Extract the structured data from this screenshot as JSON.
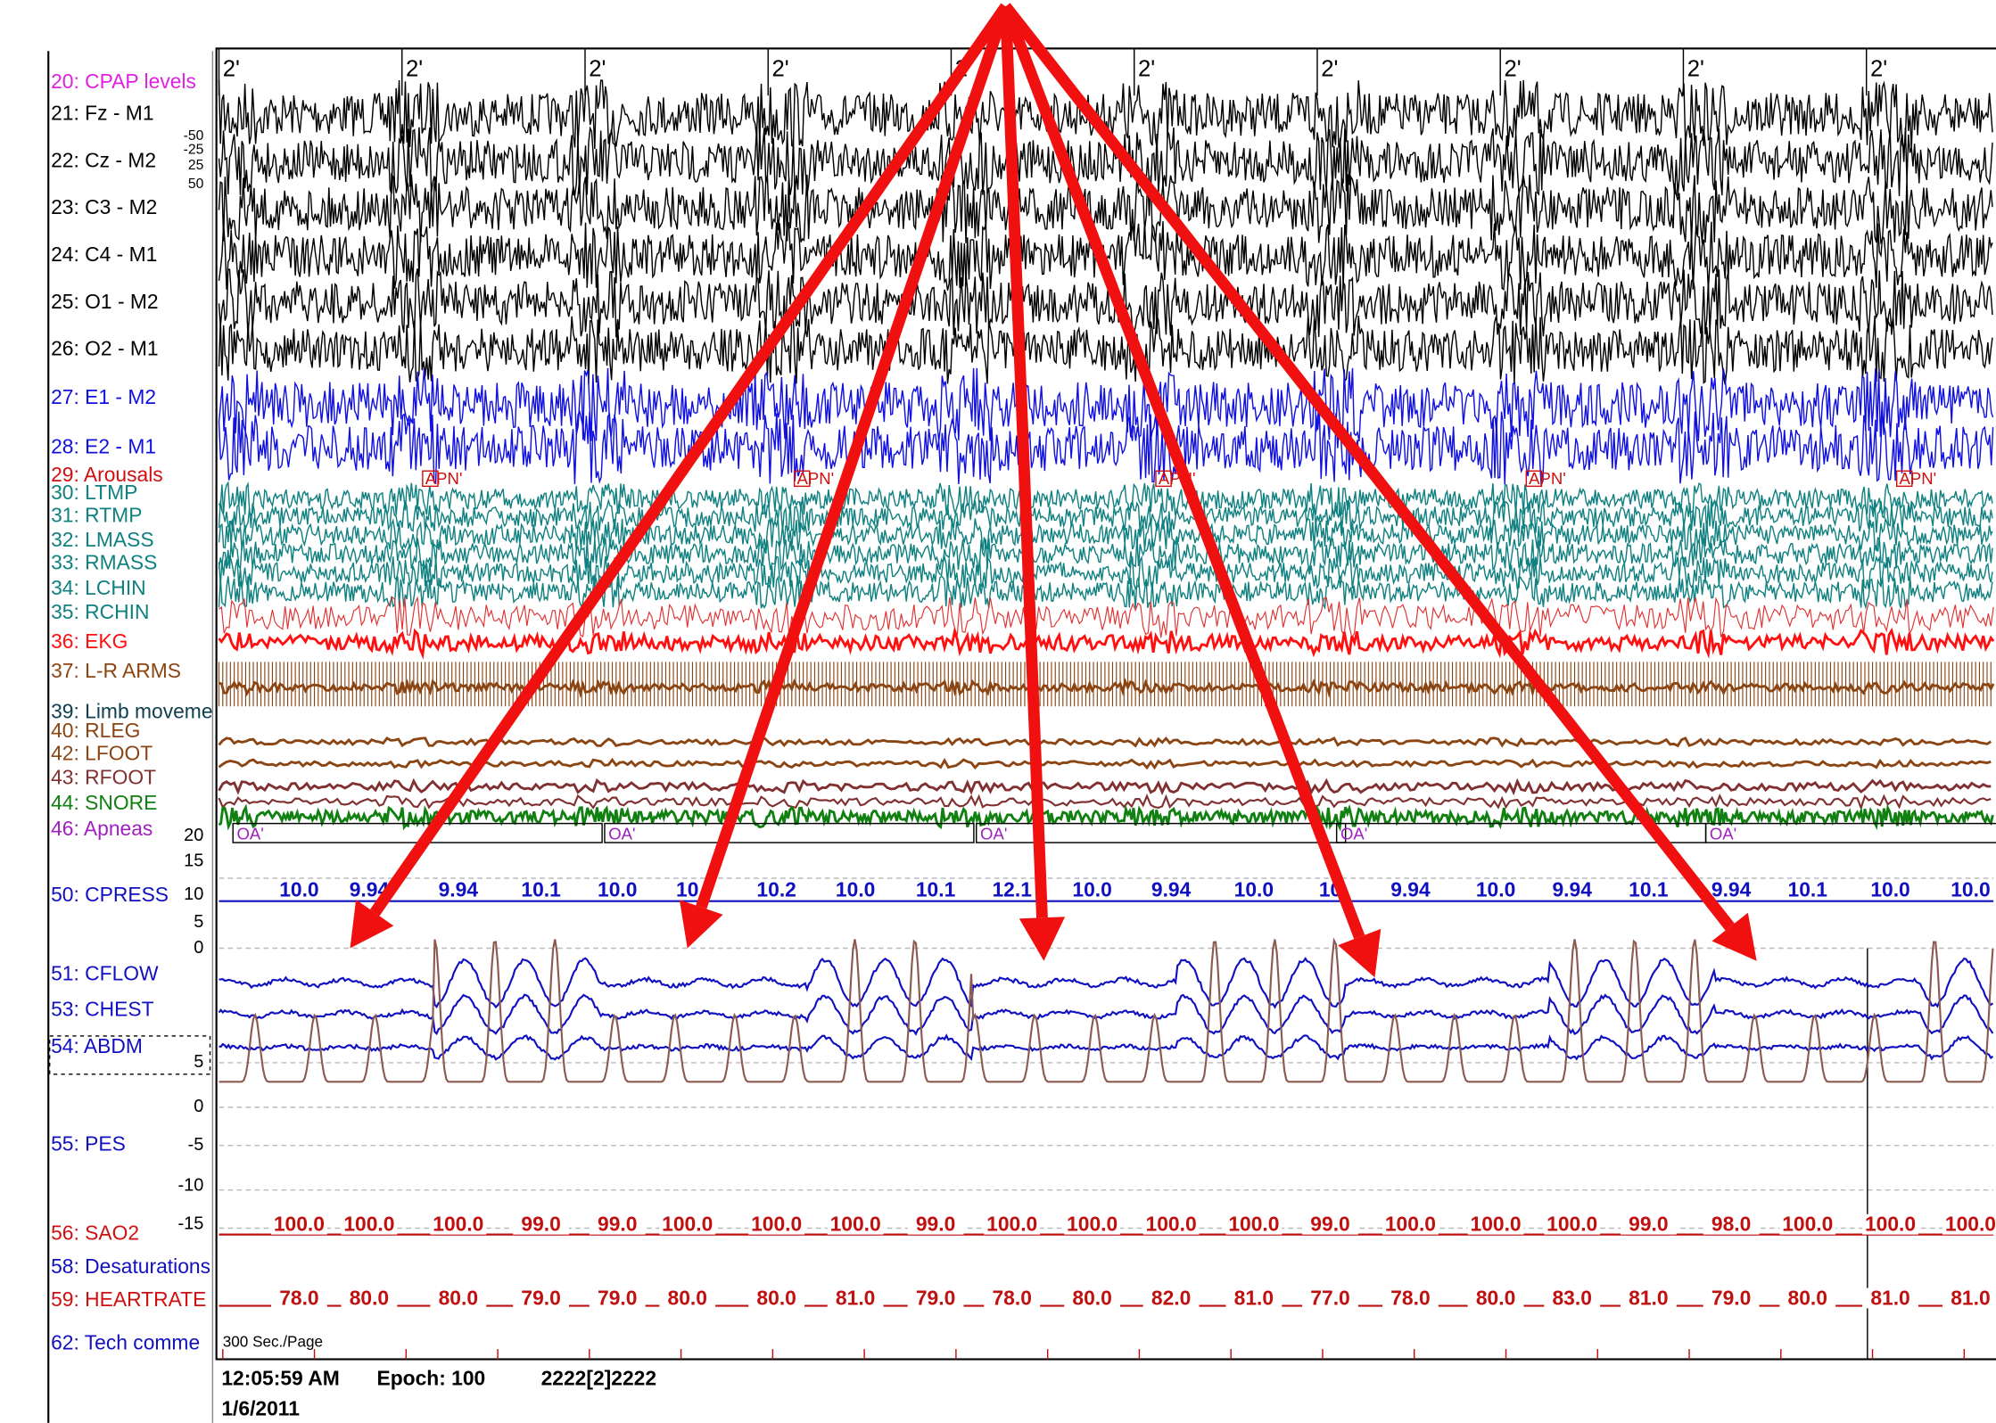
{
  "window": {
    "time_marks": [
      "2'",
      "2'",
      "2'",
      "2'",
      "2'",
      "2'",
      "2'",
      "2'",
      "2'",
      "2'"
    ],
    "channels": [
      {
        "label": "20: CPAP levels",
        "color": "#e020e0"
      },
      {
        "label": "21: Fz - M1",
        "color": "#000000"
      },
      {
        "label": "22: Cz - M2",
        "color": "#000000"
      },
      {
        "label": "23: C3 - M2",
        "color": "#000000"
      },
      {
        "label": "24: C4 - M1",
        "color": "#000000"
      },
      {
        "label": "25: O1 - M2",
        "color": "#000000"
      },
      {
        "label": "26: O2 - M1",
        "color": "#000000"
      },
      {
        "label": "27: E1 - M2",
        "color": "#1010e0"
      },
      {
        "label": "28: E2 - M1",
        "color": "#1010e0"
      },
      {
        "label": "29: Arousals",
        "color": "#d01010"
      },
      {
        "label": "30: LTMP",
        "color": "#108080"
      },
      {
        "label": "31: RTMP",
        "color": "#108080"
      },
      {
        "label": "32: LMASS",
        "color": "#108080"
      },
      {
        "label": "33: RMASS",
        "color": "#108080"
      },
      {
        "label": "34: LCHIN",
        "color": "#108080"
      },
      {
        "label": "35: RCHIN",
        "color": "#108080"
      },
      {
        "label": "36: EKG",
        "color": "#ff1010"
      },
      {
        "label": "37: L-R ARMS",
        "color": "#8b4513"
      },
      {
        "label": "39: Limb moveme",
        "color": "#104050"
      },
      {
        "label": "40: RLEG",
        "color": "#8b4513"
      },
      {
        "label": "42: LFOOT",
        "color": "#8b4513"
      },
      {
        "label": "43: RFOOT",
        "color": "#803030"
      },
      {
        "label": "44: SNORE",
        "color": "#108010"
      },
      {
        "label": "46: Apneas",
        "color": "#a020c0"
      },
      {
        "label": "50: CPRESS",
        "color": "#1010c0"
      },
      {
        "label": "51: CFLOW",
        "color": "#1010c0"
      },
      {
        "label": "53: CHEST",
        "color": "#1010c0"
      },
      {
        "label": "54: ABDM",
        "color": "#1010c0"
      },
      {
        "label": "55: PES",
        "color": "#1010c0"
      },
      {
        "label": "56: SAO2",
        "color": "#d01010"
      },
      {
        "label": "58: Desaturations",
        "color": "#1010c0"
      },
      {
        "label": "59: HEARTRATE",
        "color": "#d01010"
      },
      {
        "label": "62: Tech comme",
        "color": "#1010c0"
      }
    ],
    "cz_scale": [
      "-50",
      "-25",
      "25",
      "50"
    ],
    "cpress_scale": [
      "20",
      "15",
      "10",
      "5",
      "0"
    ],
    "pes_scale": [
      "5",
      "0",
      "-5",
      "-10",
      "-15"
    ],
    "arousal_events": [
      "APN'",
      "APN'",
      "APN'",
      "APN'",
      "APN'"
    ],
    "apnea_events": [
      "OA'",
      "OA'",
      "OA'",
      "OA'",
      "OA'"
    ],
    "cpress_values": [
      "10.0",
      "9.94",
      "9.94",
      "10.1",
      "10.0",
      "10",
      "10.2",
      "10.0",
      "10.1",
      "12.1",
      "10.0",
      "9.94",
      "10.0",
      "10",
      "9.94",
      "10.0",
      "9.94",
      "10.1",
      "9.94",
      "10.1",
      "10.0",
      "10.0"
    ],
    "sao2_values": [
      "100.0",
      "100.0",
      "100.0",
      "99.0",
      "99.0",
      "100.0",
      "100.0",
      "100.0",
      "99.0",
      "100.0",
      "100.0",
      "100.0",
      "100.0",
      "99.0",
      "100.0",
      "100.0",
      "100.0",
      "99.0",
      "98.0",
      "100.0",
      "100.0",
      "100.0"
    ],
    "heartrate_values": [
      "78.0",
      "80.0",
      "80.0",
      "79.0",
      "79.0",
      "80.0",
      "80.0",
      "81.0",
      "79.0",
      "78.0",
      "80.0",
      "82.0",
      "81.0",
      "77.0",
      "78.0",
      "80.0",
      "83.0",
      "81.0",
      "79.0",
      "80.0",
      "81.0",
      "81.0"
    ],
    "page_length": "300 Sec./Page"
  },
  "status": {
    "time": "12:05:59 AM",
    "epoch": "Epoch: 100",
    "stages": "2222[2]2222",
    "date": "1/6/2011"
  }
}
